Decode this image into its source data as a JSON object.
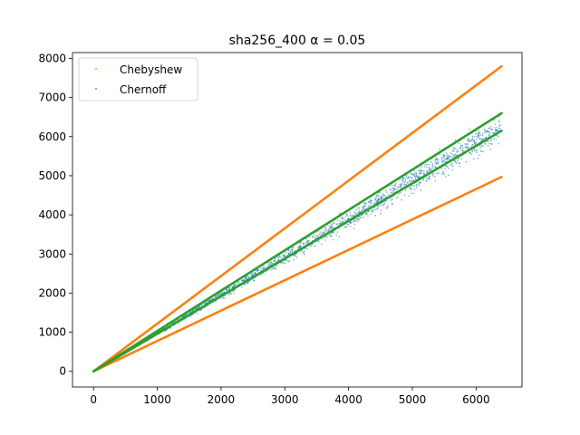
{
  "chart_data": {
    "type": "scatter",
    "title": "sha256_400 α = 0.05",
    "xlabel": "",
    "ylabel": "",
    "xlim": [
      -330,
      6720
    ],
    "ylim": [
      -400,
      8150
    ],
    "x_ticks": [
      0,
      1000,
      2000,
      3000,
      4000,
      5000,
      6000
    ],
    "y_ticks": [
      0,
      1000,
      2000,
      3000,
      4000,
      5000,
      6000,
      7000,
      8000
    ],
    "grid": false,
    "legend_placement": "top-left",
    "series": [
      {
        "name": "Chebyshew",
        "kind": "bound-lines",
        "color": "#ff7f0e",
        "lines": [
          {
            "x": [
              0,
              6400
            ],
            "y": [
              0,
              7800
            ]
          },
          {
            "x": [
              0,
              6400
            ],
            "y": [
              0,
              4970
            ]
          }
        ]
      },
      {
        "name": "Chernoff",
        "kind": "scatter",
        "color": "#1f77b4",
        "x_range": [
          0,
          6380
        ],
        "trend_y_at_x_max": 6200,
        "spread_at_x_max": 380,
        "n_points": 1800
      },
      {
        "name": "",
        "kind": "bound-lines",
        "color": "#2ca02c",
        "lines": [
          {
            "x": [
              0,
              6400
            ],
            "y": [
              0,
              6600
            ]
          },
          {
            "x": [
              0,
              6400
            ],
            "y": [
              0,
              6150
            ]
          }
        ]
      }
    ]
  }
}
